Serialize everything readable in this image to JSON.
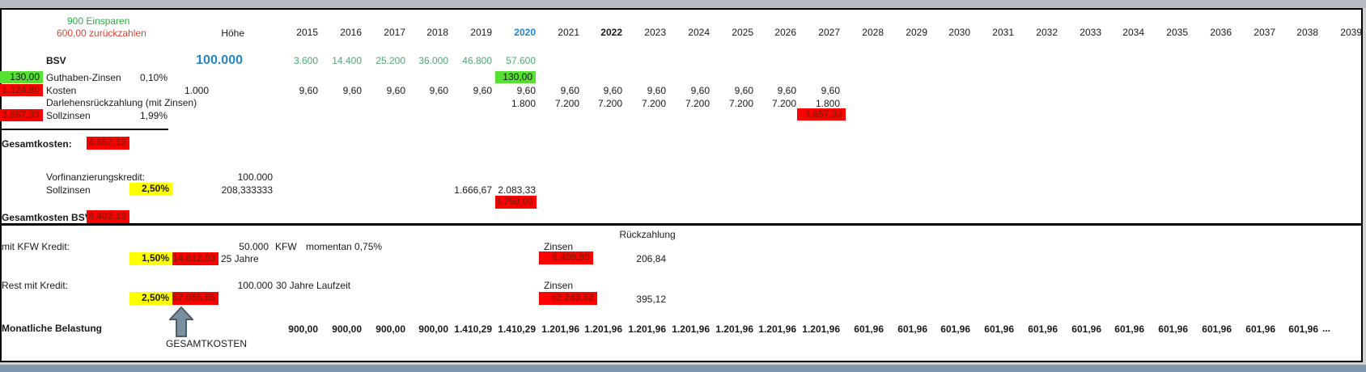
{
  "colors": {
    "green_fill": "#55e032",
    "red_fill": "#fe0000",
    "yellow_fill": "#ffff00",
    "blue": "#1f86c8",
    "green_note": "#2fae47",
    "green_values": "#4fa873",
    "red_note": "#d84438",
    "dark_red": "#8d1a02",
    "band_top": "#b6bcc2",
    "band_bottom": "#8196ad",
    "arrow_fill": "#7a8fa0",
    "arrow_stroke": "#4d5d6a"
  },
  "notes": {
    "einsparen": "900 Einsparen",
    "zurueckzahlen": "600,00 zurückzahlen"
  },
  "headers": {
    "hoehe": "Höhe",
    "rueckzahlung": "Rückzahlung"
  },
  "years": {
    "labels": [
      "2015",
      "2016",
      "2017",
      "2018",
      "2019",
      "2020",
      "2021",
      "2022",
      "2023",
      "2024",
      "2025",
      "2026",
      "2027",
      "2028",
      "2029",
      "2030",
      "2031",
      "2032",
      "2033",
      "2034",
      "2035",
      "2036",
      "2037",
      "2038",
      "2039"
    ],
    "blue_year": "2020",
    "bold_year": "2022"
  },
  "bsv": {
    "label": "BSV",
    "amount": "100.000",
    "savings": {
      "values": [
        "3.600",
        "14.400",
        "25.200",
        "36.000",
        "46.800",
        "57.600"
      ],
      "start_index": 0
    },
    "guthaben": {
      "left_value": "130,00",
      "label": "Guthaben-Zinsen",
      "rate": "0,10%",
      "cell_value": "130,00"
    },
    "kosten": {
      "left_value": "1.124,80",
      "label": "Kosten",
      "hoehe": "1.000",
      "per_year": "9,60",
      "count": 13
    },
    "darlehen": {
      "label": "Darlehensrückzahlung (mit Zinsen)",
      "values": [
        "1.800",
        "7.200",
        "7.200",
        "7.200",
        "7.200",
        "7.200",
        "7.200",
        "1.800"
      ],
      "start_index": 5
    },
    "sollzinsen": {
      "left_value": "3.657,33",
      "label": "Sollzinsen",
      "rate": "1,99%",
      "cell_value": "3.657,33"
    }
  },
  "gesamtkosten": {
    "label": "Gesamtkosten:",
    "value": "4.652,13"
  },
  "vorfinanzierung": {
    "label": "Vorfinanzierungskredit:",
    "hoehe": "100.000",
    "sollzinsen_label": "Sollzinsen",
    "rate": "2,50%",
    "monthly": "208,333333",
    "y2019": "1.666,67",
    "y2020": "2.083,33",
    "total": "3.750,00"
  },
  "gesamtkosten_bsv": {
    "label": "Gesamtkosten BSV:",
    "value": "8.402,13"
  },
  "kfw": {
    "label": "mit KFW Kredit:",
    "amount": "50.000",
    "name": "KFW",
    "momentan": "momentan 0,75%",
    "rate": "1,50%",
    "zinsen_total": "14.812,03",
    "laufzeit": "25 Jahre",
    "zinsen_label": "Zinsen",
    "zinsen_value": "6.409,90",
    "rueckzahlung": "206,84"
  },
  "rest": {
    "label": "Rest mit Kredit:",
    "amount": "100.000",
    "laufzeit": "30 Jahre Laufzeit",
    "rate": "2,50%",
    "zinsen_total": "57.055,55",
    "zinsen_label": "Zinsen",
    "zinsen_value": "42.243,52",
    "rueckzahlung": "395,12"
  },
  "monatliche": {
    "label": "Monatliche Belastung",
    "values": [
      "900,00",
      "900,00",
      "900,00",
      "900,00",
      "1.410,29",
      "1.410,29",
      "1.201,96",
      "1.201,96",
      "1.201,96",
      "1.201,96",
      "1.201,96",
      "1.201,96",
      "1.201,96",
      "601,96",
      "601,96",
      "601,96",
      "601,96",
      "601,96",
      "601,96",
      "601,96",
      "601,96",
      "601,96",
      "601,96",
      "601,96"
    ],
    "ellipsis": "..."
  },
  "arrow_label": "GESAMTKOSTEN"
}
